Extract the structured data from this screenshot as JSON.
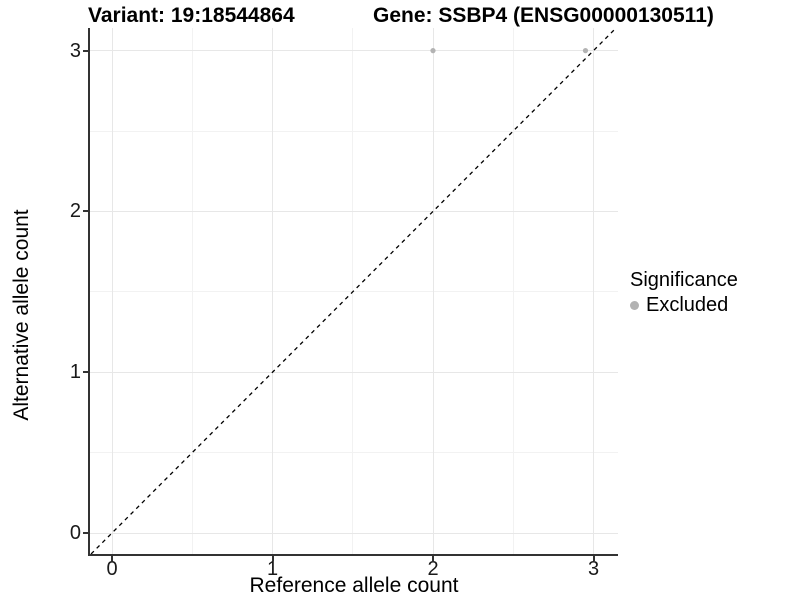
{
  "chart_data": {
    "type": "scatter",
    "title_left": "Variant: 19:18544864",
    "title_right": "Gene: SSBP4 (ENSG00000130511)",
    "xlabel": "Reference allele count",
    "ylabel": "Alternative allele count",
    "x_ticks": [
      0,
      1,
      2,
      3
    ],
    "y_ticks": [
      0,
      1,
      2,
      3
    ],
    "xlim": [
      -0.14,
      3.15
    ],
    "ylim": [
      -0.13,
      3.14
    ],
    "grid": "major and minor gridlines, white background",
    "series": [
      {
        "name": "Excluded",
        "color": "#b3b3b3",
        "points": [
          {
            "x": 2.0,
            "y": 3.0
          },
          {
            "x": 2.95,
            "y": 3.0
          }
        ]
      }
    ],
    "reference_line": {
      "type": "identity",
      "slope": 1,
      "intercept": 0,
      "style": "dashed",
      "color": "#000000"
    },
    "legend": {
      "title": "Significance",
      "position": "right",
      "entries": [
        {
          "label": "Excluded",
          "color": "#b3b3b3"
        }
      ]
    },
    "colors": {
      "grid_major": "#e7e7e7",
      "grid_minor": "#f2f2f2",
      "axis_line": "#333333",
      "tick_text": "#1a1a1a",
      "title_text": "#000000"
    }
  }
}
